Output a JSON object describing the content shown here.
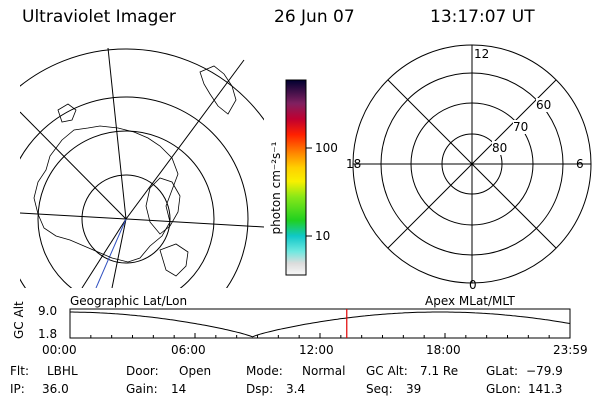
{
  "header": {
    "title": "Ultraviolet Imager",
    "date": "26 Jun 07",
    "time": "13:17:07 UT"
  },
  "colorbar": {
    "unit": "photon cm⁻²s⁻¹",
    "ticks": [
      "100",
      "10"
    ]
  },
  "left_panel": {
    "caption": "Geographic Lat/Lon"
  },
  "right_panel": {
    "caption": "Apex MLat/MLT",
    "mlt_labels": {
      "top": "12",
      "left": "18",
      "right": "6",
      "bottom": "0"
    },
    "lat_labels": [
      "60",
      "70",
      "80"
    ]
  },
  "altitude_plot": {
    "ylabel": "GC Alt",
    "y_ticks": [
      "9.0",
      "1.8"
    ],
    "ylim": [
      1.8,
      9.0
    ],
    "x_ticks": [
      "00:00",
      "06:00",
      "12:00",
      "18:00",
      "23:59"
    ],
    "current_time_hours": 13.285,
    "marker_color": "#e00000"
  },
  "footer": [
    [
      {
        "label": "Flt:",
        "value": "LBHL"
      },
      {
        "label": "Door:",
        "value": "Open"
      },
      {
        "label": "Mode:",
        "value": "Normal"
      },
      {
        "label": "GC Alt:",
        "value": "7.1 Re"
      },
      {
        "label": "GLat:",
        "value": "−79.9"
      }
    ],
    [
      {
        "label": "IP:",
        "value": "36.0"
      },
      {
        "label": "Gain:",
        "value": "14"
      },
      {
        "label": "Dsp:",
        "value": "3.4"
      },
      {
        "label": "Seq:",
        "value": "39"
      },
      {
        "label": "GLon:",
        "value": "141.3"
      }
    ]
  ]
}
